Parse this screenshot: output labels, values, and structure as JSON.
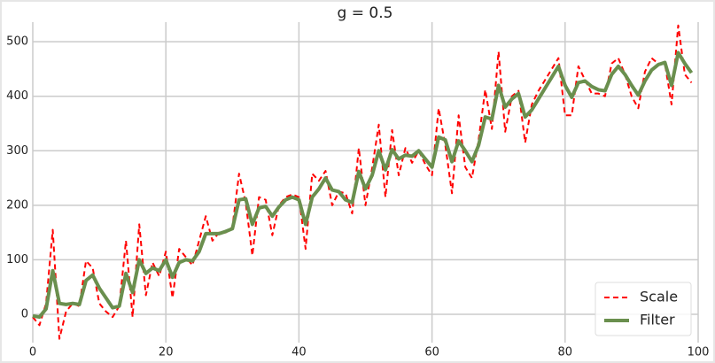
{
  "chart_data": {
    "type": "line",
    "title": "g = 0.5",
    "x": [
      0,
      1,
      2,
      3,
      4,
      5,
      6,
      7,
      8,
      9,
      10,
      11,
      12,
      13,
      14,
      15,
      16,
      17,
      18,
      19,
      20,
      21,
      22,
      23,
      24,
      25,
      26,
      27,
      28,
      29,
      30,
      31,
      32,
      33,
      34,
      35,
      36,
      37,
      38,
      39,
      40,
      41,
      42,
      43,
      44,
      45,
      46,
      47,
      48,
      49,
      50,
      51,
      52,
      53,
      54,
      55,
      56,
      57,
      58,
      59,
      60,
      61,
      62,
      63,
      64,
      65,
      66,
      67,
      68,
      69,
      70,
      71,
      72,
      73,
      74,
      75,
      76,
      77,
      78,
      79,
      80,
      81,
      82,
      83,
      84,
      85,
      86,
      87,
      88,
      89,
      90,
      91,
      92,
      93,
      94,
      95,
      96,
      97,
      98,
      99
    ],
    "series": [
      {
        "name": "Scale",
        "color": "#ff0000",
        "dash": true,
        "values": [
          -5,
          -20,
          20,
          155,
          -45,
          5,
          20,
          15,
          98,
          85,
          20,
          5,
          -5,
          15,
          135,
          -5,
          165,
          35,
          95,
          70,
          115,
          30,
          120,
          105,
          90,
          135,
          180,
          135,
          150,
          150,
          160,
          258,
          205,
          108,
          215,
          210,
          145,
          200,
          215,
          220,
          215,
          120,
          258,
          245,
          263,
          200,
          225,
          222,
          185,
          305,
          200,
          268,
          348,
          215,
          338,
          255,
          305,
          278,
          300,
          275,
          255,
          378,
          310,
          222,
          365,
          270,
          250,
          320,
          412,
          340,
          482,
          335,
          400,
          410,
          315,
          385,
          410,
          430,
          450,
          470,
          365,
          365,
          455,
          430,
          405,
          405,
          400,
          460,
          470,
          440,
          400,
          378,
          445,
          470,
          460,
          460,
          385,
          530,
          440,
          425
        ]
      },
      {
        "name": "Filter",
        "color": "#6a8f4e",
        "dash": false,
        "values": [
          -3,
          -5,
          10,
          80,
          20,
          18,
          20,
          18,
          62,
          72,
          48,
          30,
          12,
          15,
          75,
          40,
          100,
          75,
          85,
          80,
          100,
          68,
          95,
          100,
          98,
          115,
          148,
          148,
          148,
          152,
          157,
          210,
          212,
          165,
          195,
          198,
          180,
          197,
          210,
          215,
          210,
          165,
          215,
          230,
          250,
          228,
          225,
          210,
          205,
          262,
          230,
          255,
          300,
          265,
          302,
          285,
          292,
          290,
          300,
          285,
          270,
          325,
          320,
          280,
          318,
          300,
          280,
          310,
          362,
          358,
          420,
          380,
          395,
          405,
          362,
          375,
          395,
          415,
          435,
          455,
          420,
          398,
          425,
          428,
          418,
          412,
          410,
          440,
          455,
          440,
          420,
          402,
          428,
          448,
          458,
          462,
          420,
          480,
          460,
          443
        ]
      }
    ],
    "xlim": [
      0,
      100
    ],
    "ylim": [
      -52,
      536
    ],
    "xticks": [
      0,
      20,
      40,
      60,
      80,
      100
    ],
    "yticks": [
      0,
      100,
      200,
      300,
      400,
      500
    ],
    "grid": true,
    "legend": "lower right"
  }
}
